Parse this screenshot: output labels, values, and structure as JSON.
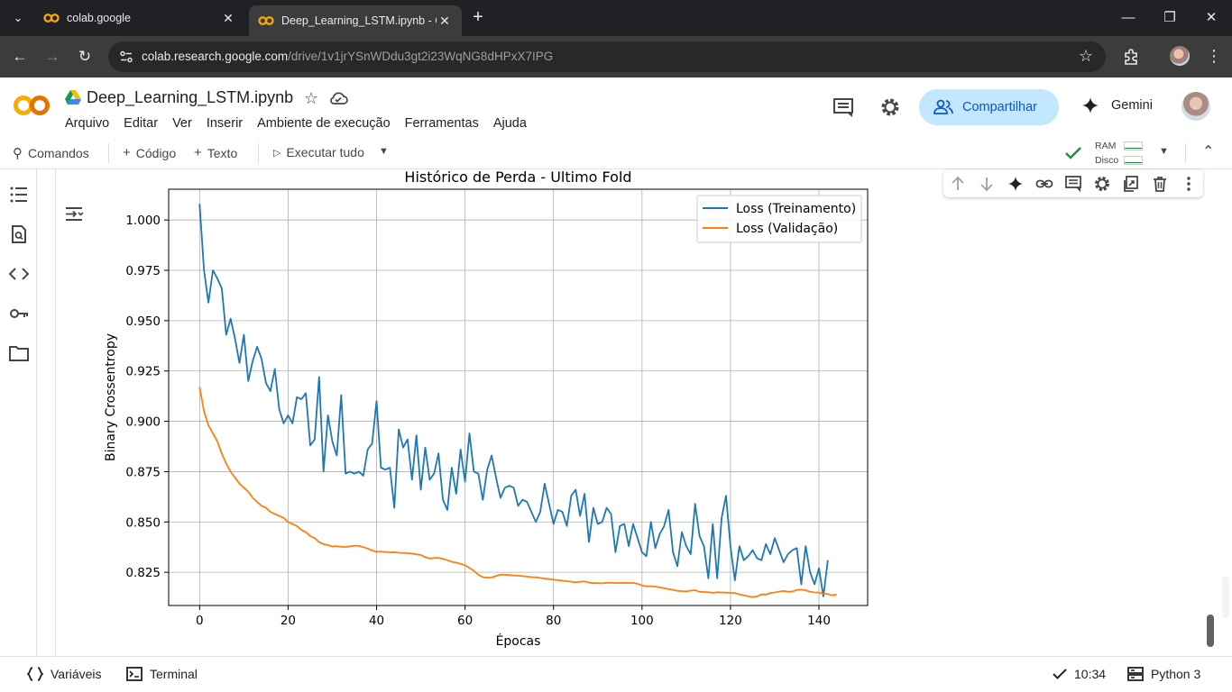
{
  "browser": {
    "tabs": [
      {
        "title": "colab.google",
        "active": false
      },
      {
        "title": "Deep_Learning_LSTM.ipynb - Co",
        "active": true
      }
    ],
    "url_domain": "colab.research.google.com",
    "url_path": "/drive/1v1jrYSnWDdu3gt2i23WqNG8dHPxX7IPG"
  },
  "colab": {
    "notebook_title": "Deep_Learning_LSTM.ipynb",
    "menu": [
      "Arquivo",
      "Editar",
      "Ver",
      "Inserir",
      "Ambiente de execução",
      "Ferramentas",
      "Ajuda"
    ],
    "share_label": "Compartilhar",
    "gemini_label": "Gemini",
    "toolbar": {
      "commands": "Comandos",
      "code": "Código",
      "text": "Texto",
      "run_all": "Executar tudo",
      "ram": "RAM",
      "disk": "Disco"
    }
  },
  "statusbar": {
    "variables": "Variáveis",
    "terminal": "Terminal",
    "time": "10:34",
    "runtime": "Python 3"
  },
  "colors": {
    "train": "#1f77b4",
    "val": "#ff7f0e",
    "accent": "#0b57d0",
    "share_bg": "#c2e7ff"
  },
  "chart_data": {
    "type": "line",
    "title": "Histórico de Perda - Ultimo Fold",
    "xlabel": "Épocas",
    "ylabel": "Binary Crossentropy",
    "xlim": [
      -7,
      151
    ],
    "ylim": [
      0.8085,
      1.0153
    ],
    "xticks": [
      0,
      20,
      40,
      60,
      80,
      100,
      120,
      140
    ],
    "yticks": [
      0.825,
      0.85,
      0.875,
      0.9,
      0.925,
      0.95,
      0.975,
      1.0
    ],
    "ytick_labels": [
      "0.825",
      "0.850",
      "0.875",
      "0.900",
      "0.925",
      "0.950",
      "0.975",
      "1.000"
    ],
    "grid": true,
    "legend_position": "top-right",
    "series": [
      {
        "name": "Loss (Treinamento)",
        "values": [
          1.008,
          0.975,
          0.959,
          0.975,
          0.971,
          0.966,
          0.943,
          0.951,
          0.941,
          0.929,
          0.943,
          0.92,
          0.93,
          0.937,
          0.931,
          0.919,
          0.915,
          0.926,
          0.906,
          0.899,
          0.903,
          0.899,
          0.912,
          0.911,
          0.914,
          0.888,
          0.891,
          0.922,
          0.875,
          0.903,
          0.89,
          0.883,
          0.913,
          0.874,
          0.875,
          0.874,
          0.875,
          0.873,
          0.886,
          0.889,
          0.91,
          0.877,
          0.876,
          0.877,
          0.857,
          0.896,
          0.887,
          0.891,
          0.871,
          0.893,
          0.866,
          0.887,
          0.871,
          0.874,
          0.884,
          0.861,
          0.856,
          0.877,
          0.864,
          0.886,
          0.87,
          0.894,
          0.875,
          0.874,
          0.861,
          0.876,
          0.883,
          0.872,
          0.862,
          0.867,
          0.868,
          0.867,
          0.858,
          0.861,
          0.86,
          0.855,
          0.85,
          0.855,
          0.869,
          0.859,
          0.849,
          0.856,
          0.855,
          0.848,
          0.863,
          0.866,
          0.853,
          0.864,
          0.84,
          0.857,
          0.849,
          0.85,
          0.857,
          0.854,
          0.835,
          0.848,
          0.849,
          0.838,
          0.849,
          0.842,
          0.835,
          0.833,
          0.85,
          0.837,
          0.844,
          0.848,
          0.856,
          0.835,
          0.828,
          0.845,
          0.838,
          0.834,
          0.859,
          0.843,
          0.838,
          0.822,
          0.849,
          0.822,
          0.852,
          0.863,
          0.838,
          0.821,
          0.838,
          0.831,
          0.833,
          0.836,
          0.832,
          0.831,
          0.839,
          0.834,
          0.842,
          0.836,
          0.83,
          0.834,
          0.836,
          0.837,
          0.819,
          0.838,
          0.825,
          0.819,
          0.827,
          0.813,
          0.831
        ]
      },
      {
        "name": "Loss (Validação)",
        "values": [
          0.917,
          0.905,
          0.898,
          0.894,
          0.89,
          0.884,
          0.879,
          0.875,
          0.872,
          0.869,
          0.867,
          0.865,
          0.862,
          0.86,
          0.858,
          0.857,
          0.855,
          0.854,
          0.853,
          0.852,
          0.85,
          0.849,
          0.848,
          0.846,
          0.845,
          0.843,
          0.842,
          0.84,
          0.839,
          0.8385,
          0.8378,
          0.838,
          0.8377,
          0.8376,
          0.8379,
          0.8382,
          0.8381,
          0.8375,
          0.8368,
          0.8358,
          0.8352,
          0.8353,
          0.8351,
          0.8349,
          0.835,
          0.8347,
          0.8346,
          0.8345,
          0.8343,
          0.8339,
          0.8336,
          0.8325,
          0.8318,
          0.8321,
          0.8322,
          0.8317,
          0.831,
          0.8302,
          0.8298,
          0.8292,
          0.8285,
          0.8271,
          0.8258,
          0.8238,
          0.8226,
          0.8223,
          0.8224,
          0.8232,
          0.8238,
          0.8238,
          0.8236,
          0.8234,
          0.8233,
          0.8231,
          0.8229,
          0.8226,
          0.8225,
          0.8222,
          0.8219,
          0.8216,
          0.8213,
          0.8211,
          0.8208,
          0.8206,
          0.8203,
          0.82,
          0.8203,
          0.8204,
          0.8199,
          0.8196,
          0.8196,
          0.8195,
          0.8198,
          0.8198,
          0.8197,
          0.8197,
          0.8198,
          0.8197,
          0.8197,
          0.8193,
          0.8185,
          0.8181,
          0.8181,
          0.8179,
          0.8175,
          0.8171,
          0.8166,
          0.8163,
          0.8158,
          0.8156,
          0.8155,
          0.8159,
          0.8161,
          0.8153,
          0.8152,
          0.8151,
          0.8148,
          0.8151,
          0.815,
          0.8149,
          0.8148,
          0.8147,
          0.814,
          0.8136,
          0.8131,
          0.8127,
          0.813,
          0.814,
          0.8139,
          0.8147,
          0.815,
          0.8154,
          0.8157,
          0.8153,
          0.8155,
          0.8162,
          0.8164,
          0.816,
          0.8154,
          0.815,
          0.8149,
          0.8145,
          0.8142,
          0.8135,
          0.814
        ]
      }
    ]
  }
}
